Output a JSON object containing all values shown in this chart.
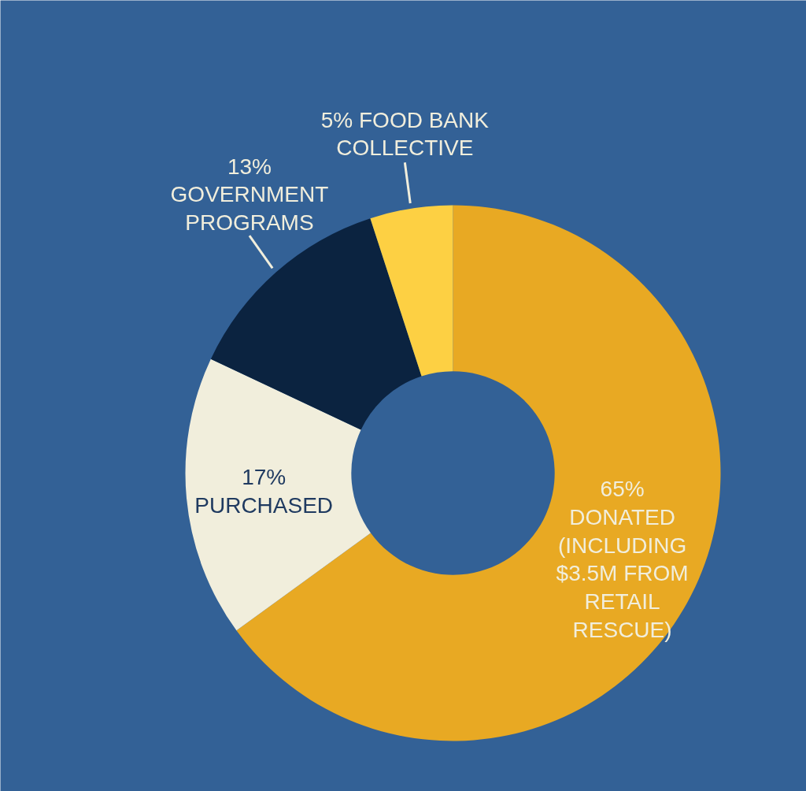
{
  "chart_data": {
    "type": "donut",
    "categories": [
      "DONATED\n(INCLUDING\n$3.5M FROM\nRETAIL\nRESCUE)",
      "PURCHASED",
      "GOVERNMENT\nPROGRAMS",
      "FOOD BANK\nCOLLECTIVE"
    ],
    "values": [
      65,
      17,
      13,
      5
    ],
    "colors": [
      "#e8a923",
      "#f1eedc",
      "#0b2340",
      "#fdd043"
    ],
    "value_labels": [
      "65%",
      "17%",
      "13%",
      "5%"
    ]
  }
}
